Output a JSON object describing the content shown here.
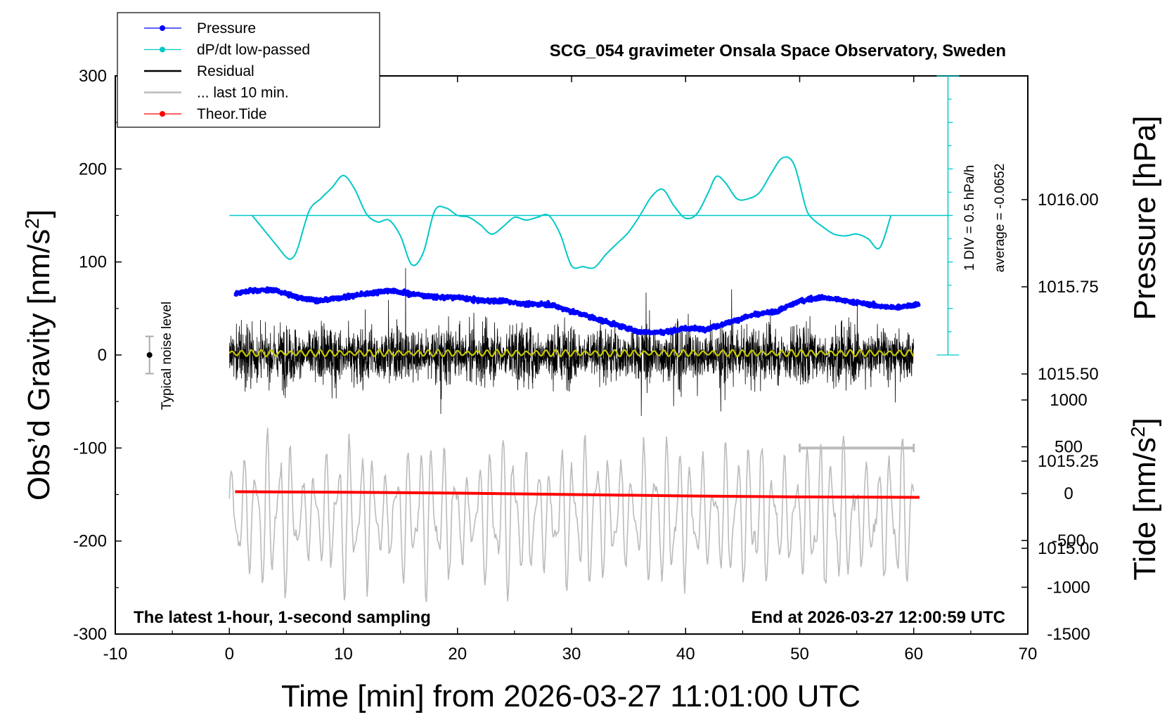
{
  "chart_data": {
    "type": "line",
    "title": "SCG_054 gravimeter Onsala Space Observatory, Sweden",
    "xlabel": "Time [min] from 2026-03-27 11:01:00 UTC",
    "ylabel_left": "Obs’d Gravity [nm/s²]",
    "ylabel_right_top": "Pressure [hPa]",
    "ylabel_right_bottom": "Tide [nm/s²]",
    "xlim": [
      -10,
      70
    ],
    "ylim": [
      -300,
      300
    ],
    "pressure_range": [
      1014.75,
      1016.25
    ],
    "tide_range": [
      -1500,
      1000
    ],
    "x_ticks": [
      "-10",
      "0",
      "10",
      "20",
      "30",
      "40",
      "50",
      "60",
      "70"
    ],
    "y_ticks_left": [
      "300",
      "200",
      "100",
      "0",
      "-100",
      "-200",
      "-300"
    ],
    "pressure_ticks": [
      "1016.00",
      "1015.75",
      "1015.50",
      "1015.25",
      "1015.00"
    ],
    "tide_ticks": [
      "1000",
      "500",
      "0",
      "-500",
      "-1000",
      "-1500"
    ],
    "legend": {
      "position": "top-left",
      "entries": [
        {
          "label": "Pressure",
          "color": "#0000ff",
          "marker": true
        },
        {
          "label": "dP/dt low-passed",
          "color": "#00c8c8",
          "marker": true
        },
        {
          "label": "Residual",
          "color": "#000000",
          "marker": false
        },
        {
          "label": "... last 10 min.",
          "color": "#bbbbbb",
          "marker": false
        },
        {
          "label": "Theor.Tide",
          "color": "#ff0000",
          "marker": true
        }
      ]
    },
    "annotations": {
      "bottom_left": "The latest 1-hour, 1-second sampling",
      "bottom_right": "End at 2026-03-27 12:00:59 UTC",
      "noise": "Typical noise level",
      "dpdt_scale": "1 DIV = 0.5 hPa/h",
      "dpdt_average": "average = -0.0652"
    },
    "noise_level": [
      -20,
      20
    ],
    "dpdt_zero_gravity_level": 150,
    "last10_bar": {
      "x": [
        50,
        60
      ],
      "y": -100
    },
    "series": [
      {
        "name": "Pressure",
        "axis": "pressure",
        "color": "#0000ff",
        "x": [
          0.5,
          2,
          4,
          6,
          8,
          10,
          12,
          14,
          16,
          18,
          20,
          22,
          24,
          26,
          28,
          30,
          32,
          34,
          36,
          38,
          40,
          42,
          44,
          46,
          48,
          50,
          52,
          54,
          56,
          58,
          60.5
        ],
        "y": [
          1015.73,
          1015.74,
          1015.74,
          1015.72,
          1015.71,
          1015.72,
          1015.73,
          1015.74,
          1015.73,
          1015.72,
          1015.72,
          1015.71,
          1015.71,
          1015.7,
          1015.7,
          1015.68,
          1015.66,
          1015.64,
          1015.62,
          1015.62,
          1015.63,
          1015.63,
          1015.65,
          1015.67,
          1015.68,
          1015.71,
          1015.72,
          1015.71,
          1015.7,
          1015.69,
          1015.7
        ]
      },
      {
        "name": "dP/dt low-passed",
        "axis": "gravity",
        "color": "#00c8c8",
        "x": [
          2,
          3,
          4,
          5,
          5.5,
          6,
          7,
          8,
          9,
          10,
          11,
          12,
          13,
          14,
          15,
          16,
          17,
          18,
          19,
          20,
          21,
          22,
          23,
          24,
          25,
          26,
          27,
          28,
          29,
          30,
          31,
          32,
          33,
          34,
          35,
          36,
          37,
          38,
          39,
          40,
          41,
          42,
          42.7,
          43.5,
          44.5,
          45.5,
          46.5,
          47.5,
          48.5,
          49.5,
          50.5,
          51,
          52,
          53,
          54,
          55,
          56,
          57,
          58
        ],
        "y": [
          150,
          135,
          120,
          105,
          104,
          115,
          155,
          168,
          180,
          193,
          178,
          152,
          143,
          145,
          128,
          97,
          110,
          155,
          158,
          150,
          148,
          140,
          130,
          138,
          148,
          145,
          148,
          150,
          130,
          96,
          95,
          94,
          108,
          120,
          132,
          150,
          170,
          178,
          160,
          147,
          152,
          175,
          192,
          185,
          168,
          168,
          175,
          195,
          212,
          205,
          160,
          148,
          138,
          130,
          128,
          130,
          125,
          115,
          150
        ]
      },
      {
        "name": "Theor.Tide",
        "axis": "tide",
        "color": "#ff0000",
        "x": [
          0.5,
          10,
          20,
          30,
          40,
          50,
          60.5
        ],
        "y": [
          20,
          15,
          5,
          -10,
          -25,
          -35,
          -40
        ]
      },
      {
        "name": "Residual",
        "axis": "gravity",
        "color": "#000000",
        "x_range": [
          0,
          60
        ],
        "y_envelope": [
          -90,
          100
        ]
      },
      {
        "name": "... last 10 min.",
        "axis": "gravity",
        "color": "#bbbbbb",
        "x_range": [
          0,
          60
        ],
        "y_envelope": [
          -270,
          -75
        ]
      }
    ]
  }
}
